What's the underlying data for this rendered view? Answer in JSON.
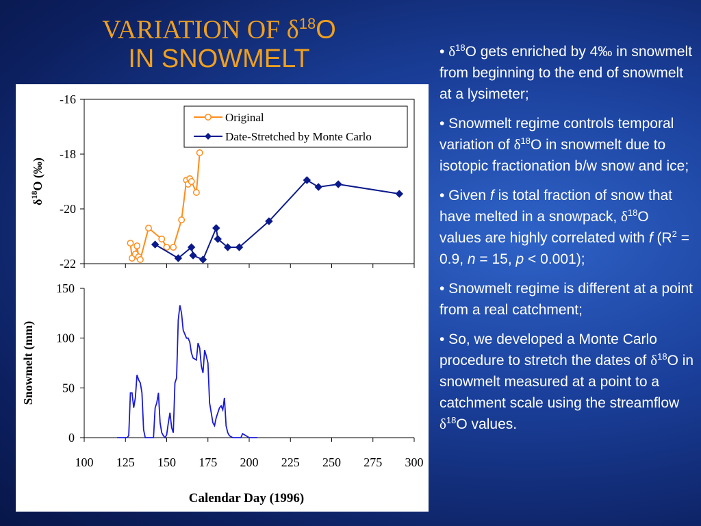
{
  "title": {
    "line1_prefix": "VARIATION OF ",
    "delta": "δ",
    "sup": "18",
    "element": "O",
    "line2": "IN SNOWMELT"
  },
  "bullets": [
    {
      "parts": [
        "• ",
        {
          "delta": "δ"
        },
        {
          "sup": "18"
        },
        "O gets enriched by 4‰ in snowmelt from beginning to the end of snowmelt at a lysimeter;"
      ]
    },
    {
      "parts": [
        "• Snowmelt regime controls temporal variation of ",
        {
          "delta": "δ"
        },
        {
          "sup": "18"
        },
        "O in snowmelt due to isotopic fractionation b/w snow and ice;"
      ]
    },
    {
      "parts": [
        "• Given ",
        {
          "i": "f"
        },
        " is total fraction of snow that have melted in a snowpack, ",
        {
          "delta": "δ"
        },
        {
          "sup": "18"
        },
        "O values are highly correlated with ",
        {
          "i": "f"
        },
        " (R",
        {
          "sup": "2"
        },
        " = 0.9, ",
        {
          "i": "n"
        },
        " = 15, ",
        {
          "i": "p"
        },
        " < 0.001);"
      ]
    },
    {
      "parts": [
        "• Snowmelt regime is different at a point from a real catchment;"
      ]
    },
    {
      "parts": [
        "• So, we developed a Monte Carlo procedure to stretch the dates of ",
        {
          "delta": "δ"
        },
        {
          "sup": "18"
        },
        "O in snowmelt measured at a point to a catchment scale using the streamflow ",
        {
          "delta": "δ"
        },
        {
          "sup": "18"
        },
        "O values."
      ]
    }
  ],
  "chart_data": [
    {
      "type": "line",
      "ylabel": "δ18O (‰)",
      "ylabel_delta": "δ",
      "ylabel_sup": "18",
      "ylabel_rest": "O (‰)",
      "ylim": [
        -16,
        -22
      ],
      "y_inverted": true,
      "yticks": [
        "-16",
        "-18",
        "-20",
        "-22"
      ],
      "xlim": [
        100,
        300
      ],
      "legend_position": "top-right",
      "colors": {
        "Original": "#ff8c1a",
        "Date-Stretched by Monte Carlo": "#0a1a8c"
      },
      "series": [
        {
          "name": "Original",
          "marker": "open-circle",
          "x": [
            128,
            129,
            131,
            132,
            133,
            134,
            139,
            147,
            150,
            154,
            159,
            162,
            163,
            164,
            165,
            168,
            170
          ],
          "y": [
            -21.25,
            -21.8,
            -21.65,
            -21.35,
            -21.75,
            -21.85,
            -20.7,
            -21.1,
            -21.4,
            -21.4,
            -20.4,
            -18.95,
            -19.1,
            -18.9,
            -19.0,
            -19.4,
            -17.95
          ]
        },
        {
          "name": "Date-Stretched by Monte Carlo",
          "marker": "filled-diamond",
          "x": [
            143,
            157,
            165,
            166,
            172,
            180,
            181,
            187,
            194,
            212,
            235,
            242,
            254,
            291
          ],
          "y": [
            -21.3,
            -21.8,
            -21.4,
            -21.7,
            -21.85,
            -20.7,
            -21.1,
            -21.4,
            -21.4,
            -20.45,
            -18.95,
            -19.2,
            -19.1,
            -19.45
          ]
        }
      ]
    },
    {
      "type": "line",
      "ylabel": "Snowmelt (mm)",
      "xlabel": "Calendar Day (1996)",
      "ylim": [
        0,
        150
      ],
      "yticks": [
        "0",
        "50",
        "100",
        "150"
      ],
      "xlim": [
        100,
        300
      ],
      "xticks": [
        "100",
        "125",
        "150",
        "175",
        "200",
        "225",
        "250",
        "275",
        "300"
      ],
      "color": "#1a1ad6",
      "series": [
        {
          "x": [
            120,
            126,
            127,
            128,
            129,
            130,
            131,
            132,
            133,
            134,
            135,
            136,
            137,
            138,
            139,
            140,
            141,
            142,
            143,
            144,
            145,
            146,
            147,
            148,
            149,
            150,
            151,
            152,
            153,
            154,
            155,
            156,
            157,
            158,
            159,
            160,
            161,
            162,
            163,
            164,
            165,
            166,
            167,
            168,
            169,
            170,
            171,
            172,
            173,
            174,
            175,
            176,
            177,
            178,
            179,
            180,
            181,
            182,
            183,
            184,
            185,
            186,
            187,
            188,
            189,
            190,
            191,
            192,
            193,
            194,
            195,
            196,
            197,
            198,
            199,
            200,
            205
          ],
          "y": [
            0,
            0,
            2,
            45,
            45,
            30,
            40,
            63,
            58,
            55,
            45,
            8,
            0,
            0,
            0,
            0,
            0,
            0,
            30,
            35,
            45,
            15,
            5,
            2,
            0,
            3,
            15,
            25,
            10,
            5,
            55,
            60,
            118,
            133,
            125,
            108,
            104,
            100,
            100,
            96,
            85,
            80,
            79,
            78,
            95,
            90,
            72,
            65,
            88,
            82,
            75,
            35,
            25,
            15,
            12,
            20,
            25,
            30,
            32,
            28,
            40,
            12,
            5,
            2,
            1,
            0,
            0,
            0,
            0,
            0,
            0,
            4,
            3,
            2,
            1,
            0,
            0
          ]
        }
      ]
    }
  ]
}
